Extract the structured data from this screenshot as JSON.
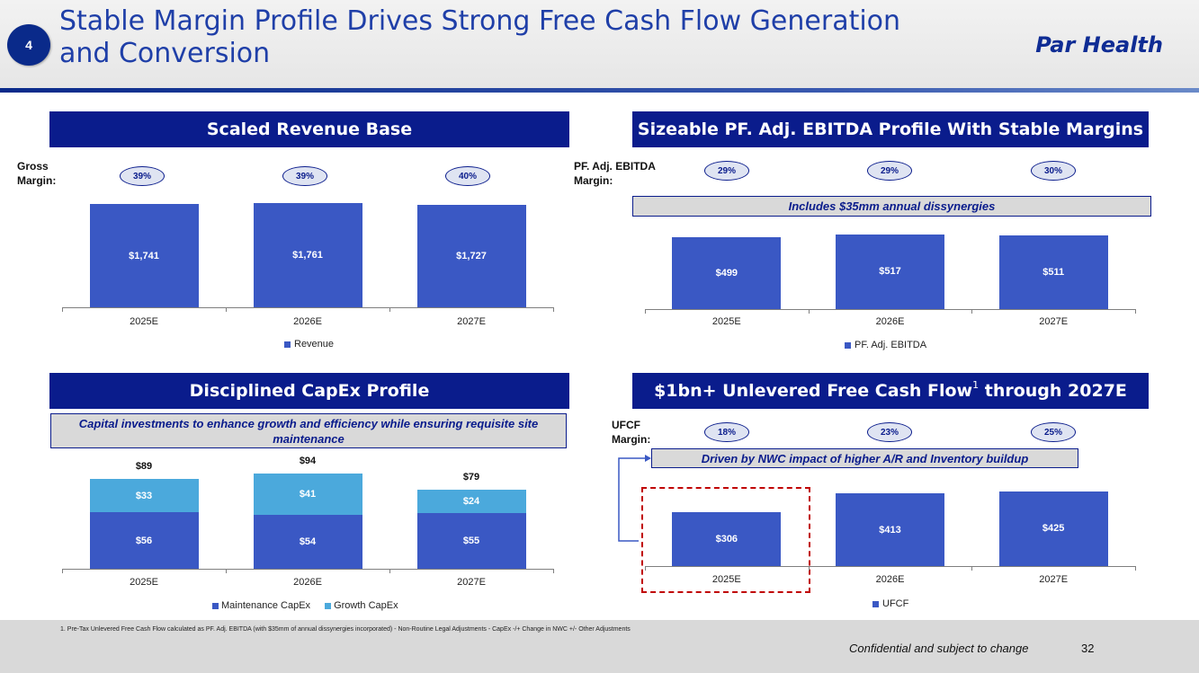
{
  "header": {
    "section_number": "4",
    "title_line1": "Stable Margin Profile Drives Strong Free Cash Flow Generation",
    "title_line2": "and Conversion",
    "brand": "Par Health"
  },
  "colors": {
    "navy": "#0a1c8c",
    "bar_dark": "#3a58c4",
    "bar_light": "#4ba9dc",
    "dashed": "#c00000"
  },
  "revenue_panel": {
    "title": "Scaled Revenue Base",
    "margin_label_line1": "Gross",
    "margin_label_line2": "Margin:",
    "margins": [
      "39%",
      "39%",
      "40%"
    ],
    "legend": "Revenue"
  },
  "ebitda_panel": {
    "title": "Sizeable PF. Adj. EBITDA Profile With Stable Margins",
    "margin_label_line1": "PF. Adj. EBITDA",
    "margin_label_line2": "Margin:",
    "margins": [
      "29%",
      "29%",
      "30%"
    ],
    "note": "Includes $35mm annual dissynergies",
    "legend": "PF. Adj. EBITDA"
  },
  "capex_panel": {
    "title": "Disciplined CapEx Profile",
    "note": "Capital investments to enhance growth and efficiency while ensuring requisite site maintenance",
    "legend_maintenance": "Maintenance CapEx",
    "legend_growth": "Growth CapEx"
  },
  "ufcf_panel": {
    "title": "$1bn+ Unlevered Free Cash Flow",
    "title_sup": "1",
    "title_suffix": " through 2027E",
    "margin_label_line1": "UFCF",
    "margin_label_line2": "Margin:",
    "margins": [
      "18%",
      "23%",
      "25%"
    ],
    "note": "Driven by NWC impact of higher A/R and Inventory buildup",
    "legend": "UFCF"
  },
  "chart_data": [
    {
      "type": "bar",
      "title": "Scaled Revenue Base",
      "categories": [
        "2025E",
        "2026E",
        "2027E"
      ],
      "series": [
        {
          "name": "Revenue",
          "values": [
            1741,
            1761,
            1727
          ],
          "labels": [
            "$1,741",
            "$1,761",
            "$1,727"
          ]
        }
      ],
      "ylim": [
        0,
        1900
      ]
    },
    {
      "type": "bar",
      "title": "Sizeable PF. Adj. EBITDA Profile With Stable Margins",
      "categories": [
        "2025E",
        "2026E",
        "2027E"
      ],
      "series": [
        {
          "name": "PF. Adj. EBITDA",
          "values": [
            499,
            517,
            511
          ],
          "labels": [
            "$499",
            "$517",
            "$511"
          ]
        }
      ],
      "ylim": [
        0,
        560
      ]
    },
    {
      "type": "bar",
      "stacked": true,
      "title": "Disciplined CapEx Profile",
      "categories": [
        "2025E",
        "2026E",
        "2027E"
      ],
      "series": [
        {
          "name": "Maintenance CapEx",
          "values": [
            56,
            54,
            55
          ],
          "labels": [
            "$56",
            "$54",
            "$55"
          ]
        },
        {
          "name": "Growth CapEx",
          "values": [
            33,
            41,
            24
          ],
          "labels": [
            "$33",
            "$41",
            "$24"
          ]
        }
      ],
      "totals": [
        "$89",
        "$94",
        "$79"
      ],
      "ylim": [
        0,
        100
      ]
    },
    {
      "type": "bar",
      "title": "$1bn+ Unlevered Free Cash Flow through 2027E",
      "categories": [
        "2025E",
        "2026E",
        "2027E"
      ],
      "series": [
        {
          "name": "UFCF",
          "values": [
            306,
            413,
            425
          ],
          "labels": [
            "$306",
            "$413",
            "$425"
          ]
        }
      ],
      "ylim": [
        0,
        470
      ]
    }
  ],
  "footer": {
    "footnote": "1.     Pre-Tax Unlevered Free Cash Flow calculated as PF. Adj. EBITDA (with $35mm of annual dissynergies incorporated) - Non-Routine Legal Adjustments - CapEx -/+ Change in NWC +/- Other Adjustments",
    "confidential": "Confidential and subject to change",
    "page_number": "32"
  }
}
